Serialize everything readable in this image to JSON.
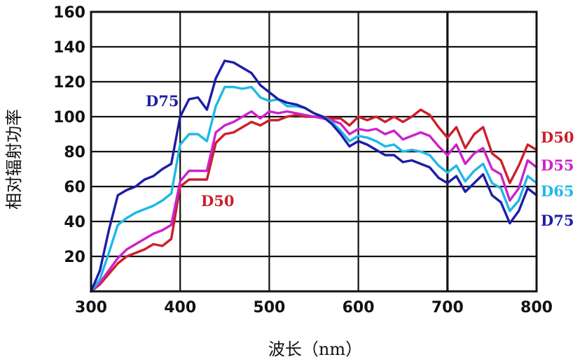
{
  "chart_data": {
    "type": "line",
    "title": "",
    "xlabel": "波长（nm）",
    "ylabel": "相对辐射功率",
    "xlim": [
      300,
      800
    ],
    "ylim": [
      0,
      160
    ],
    "xticks": [
      300,
      400,
      500,
      600,
      700,
      800
    ],
    "yticks": [
      20,
      40,
      60,
      80,
      100,
      120,
      140,
      160
    ],
    "grid": true,
    "x": [
      300,
      310,
      320,
      330,
      340,
      350,
      360,
      370,
      380,
      390,
      400,
      410,
      420,
      430,
      440,
      450,
      460,
      470,
      480,
      490,
      500,
      510,
      520,
      530,
      540,
      550,
      560,
      570,
      580,
      590,
      600,
      610,
      620,
      630,
      640,
      650,
      660,
      670,
      680,
      690,
      700,
      710,
      720,
      730,
      740,
      750,
      760,
      770,
      780,
      790,
      800
    ],
    "series": [
      {
        "name": "D50",
        "color": "#cc1f2a",
        "values": [
          0,
          4,
          10,
          16,
          20,
          22,
          24,
          27,
          26,
          30,
          60,
          64,
          64,
          64,
          85,
          90,
          91,
          94,
          97,
          95,
          98,
          98,
          100,
          101,
          100,
          100,
          100,
          99,
          99,
          95,
          100,
          98,
          100,
          97,
          100,
          97,
          100,
          104,
          101,
          94,
          88,
          94,
          82,
          90,
          94,
          79,
          75,
          62,
          72,
          84,
          81
        ]
      },
      {
        "name": "D55",
        "color": "#cc22cc",
        "values": [
          0,
          5,
          12,
          19,
          24,
          27,
          30,
          33,
          35,
          38,
          63,
          69,
          69,
          69,
          91,
          95,
          97,
          100,
          103,
          99,
          103,
          102,
          103,
          102,
          101,
          100,
          99,
          98,
          96,
          90,
          93,
          92,
          93,
          90,
          92,
          87,
          89,
          91,
          89,
          83,
          78,
          84,
          73,
          79,
          82,
          70,
          67,
          52,
          59,
          75,
          71
        ]
      },
      {
        "name": "D65",
        "color": "#1eb8e8",
        "values": [
          0,
          7,
          22,
          38,
          42,
          45,
          47,
          49,
          52,
          56,
          84,
          90,
          90,
          86,
          106,
          117,
          117,
          116,
          117,
          111,
          109,
          110,
          106,
          106,
          105,
          102,
          100,
          97,
          92,
          86,
          89,
          88,
          86,
          83,
          84,
          80,
          81,
          80,
          78,
          72,
          68,
          72,
          63,
          69,
          73,
          62,
          59,
          46,
          52,
          66,
          62
        ]
      },
      {
        "name": "D75",
        "color": "#1c1ea6",
        "values": [
          0,
          12,
          35,
          55,
          58,
          60,
          64,
          66,
          70,
          73,
          100,
          110,
          111,
          104,
          122,
          132,
          131,
          128,
          125,
          118,
          114,
          110,
          108,
          107,
          105,
          102,
          100,
          96,
          90,
          83,
          86,
          84,
          81,
          78,
          78,
          74,
          75,
          73,
          71,
          65,
          62,
          66,
          57,
          62,
          67,
          55,
          51,
          39,
          46,
          59,
          55
        ]
      }
    ],
    "inline_labels": [
      {
        "series": "D75",
        "text": "D75"
      },
      {
        "series": "D50",
        "text": "D50"
      }
    ],
    "end_labels": [
      {
        "series": "D50",
        "text": "D50"
      },
      {
        "series": "D55",
        "text": "D55"
      },
      {
        "series": "D65",
        "text": "D65"
      },
      {
        "series": "D75",
        "text": "D75"
      }
    ]
  }
}
